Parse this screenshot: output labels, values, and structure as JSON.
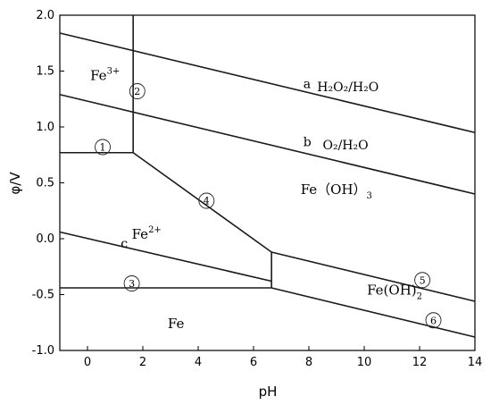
{
  "chart_data": {
    "type": "line",
    "xlabel": "pH",
    "ylabel": "φ/V",
    "xlim": [
      -1,
      14
    ],
    "ylim": [
      -1.0,
      2.0
    ],
    "x_ticks": [
      0,
      2,
      4,
      6,
      8,
      10,
      12,
      14
    ],
    "y_ticks": [
      -1.0,
      -0.5,
      0.0,
      0.5,
      1.0,
      1.5,
      2.0
    ],
    "x_tick_labels": [
      "0",
      "2",
      "4",
      "6",
      "8",
      "10",
      "12",
      "14"
    ],
    "y_tick_labels": [
      "-1.0",
      "-0.5",
      "0.0",
      "0.5",
      "1.0",
      "1.5",
      "2.0"
    ],
    "series": [
      {
        "name": "a",
        "points": [
          [
            -1,
            1.84
          ],
          [
            14,
            0.95
          ]
        ]
      },
      {
        "name": "b",
        "points": [
          [
            -1,
            1.29
          ],
          [
            14,
            0.4
          ]
        ]
      },
      {
        "name": "",
        "points": [
          [
            -1,
            0.77
          ],
          [
            1.65,
            0.77
          ]
        ]
      },
      {
        "name": "",
        "points": [
          [
            1.65,
            2.0
          ],
          [
            1.65,
            0.77
          ]
        ]
      },
      {
        "name": "",
        "points": [
          [
            1.65,
            0.77
          ],
          [
            6.65,
            -0.12
          ]
        ]
      },
      {
        "name": "c",
        "points": [
          [
            -1,
            0.06
          ],
          [
            6.65,
            -0.38
          ]
        ]
      },
      {
        "name": "",
        "points": [
          [
            6.65,
            -0.12
          ],
          [
            6.65,
            -0.44
          ]
        ]
      },
      {
        "name": "",
        "points": [
          [
            -1,
            -0.44
          ],
          [
            6.65,
            -0.44
          ]
        ]
      },
      {
        "name": "",
        "points": [
          [
            6.65,
            -0.12
          ],
          [
            14,
            -0.56
          ]
        ]
      },
      {
        "name": "",
        "points": [
          [
            6.65,
            -0.44
          ],
          [
            14,
            -0.88
          ]
        ]
      }
    ],
    "line_labels": [
      {
        "id": "a",
        "text": "a",
        "x": 7.8,
        "y": 1.35
      },
      {
        "id": "b",
        "text": "b",
        "x": 7.8,
        "y": 0.83
      },
      {
        "id": "c",
        "text": "c",
        "x": 1.2,
        "y": -0.08
      }
    ],
    "couple_labels": [
      {
        "id": "h2o2",
        "main": "H₂O₂/H₂O",
        "x": 8.3,
        "y": 1.32
      },
      {
        "id": "o2",
        "main": "O₂/H₂O",
        "x": 8.5,
        "y": 0.8
      }
    ],
    "regions": [
      {
        "id": "fe3",
        "label": "Fe",
        "charge": "3+",
        "x": 0.1,
        "y": 1.42
      },
      {
        "id": "fe2",
        "label": "Fe",
        "charge": "2+",
        "x": 1.6,
        "y": 0.0
      },
      {
        "id": "feoh3",
        "label": "Fe（OH）",
        "subscript": "3",
        "x": 7.7,
        "y": 0.4
      },
      {
        "id": "feoh2",
        "label": "Fe(OH)",
        "subscript": "2",
        "x": 10.1,
        "y": -0.5
      },
      {
        "id": "fe",
        "label": "Fe",
        "x": 2.9,
        "y": -0.8
      }
    ],
    "markers": [
      {
        "id": "1",
        "symbol": "①",
        "x": 0.55,
        "y": 0.82
      },
      {
        "id": "2",
        "symbol": "②",
        "x": 1.8,
        "y": 1.32
      },
      {
        "id": "3",
        "symbol": "③",
        "x": 1.6,
        "y": -0.4
      },
      {
        "id": "4",
        "symbol": "④",
        "x": 4.3,
        "y": 0.34
      },
      {
        "id": "5",
        "symbol": "⑤",
        "x": 12.1,
        "y": -0.37
      },
      {
        "id": "6",
        "symbol": "⑥",
        "x": 12.5,
        "y": -0.73
      }
    ],
    "grid": false,
    "legend": "none"
  }
}
